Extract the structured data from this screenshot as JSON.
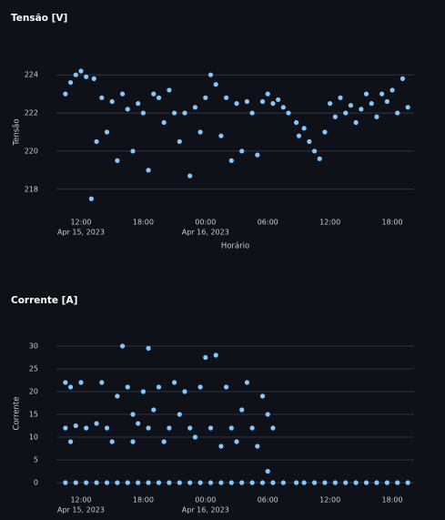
{
  "chart_data": [
    {
      "type": "scatter",
      "title": "Tensão [V]",
      "x_label": "Horário",
      "y_label": "Tensão",
      "color": "#83c9ff",
      "grid": true,
      "x": [
        "2023-04-15 10:30",
        "2023-04-15 11:00",
        "2023-04-15 11:30",
        "2023-04-15 12:00",
        "2023-04-15 12:30",
        "2023-04-15 13:00",
        "2023-04-15 13:15",
        "2023-04-15 13:30",
        "2023-04-15 14:00",
        "2023-04-15 14:30",
        "2023-04-15 15:00",
        "2023-04-15 15:30",
        "2023-04-15 16:00",
        "2023-04-15 16:30",
        "2023-04-15 17:00",
        "2023-04-15 17:30",
        "2023-04-15 18:00",
        "2023-04-15 18:30",
        "2023-04-15 19:00",
        "2023-04-15 19:30",
        "2023-04-15 20:00",
        "2023-04-15 20:30",
        "2023-04-15 21:00",
        "2023-04-15 21:30",
        "2023-04-15 22:00",
        "2023-04-15 22:30",
        "2023-04-15 23:00",
        "2023-04-15 23:30",
        "2023-04-16 00:00",
        "2023-04-16 00:30",
        "2023-04-16 01:00",
        "2023-04-16 01:30",
        "2023-04-16 02:00",
        "2023-04-16 02:30",
        "2023-04-16 03:00",
        "2023-04-16 03:30",
        "2023-04-16 04:00",
        "2023-04-16 04:30",
        "2023-04-16 05:00",
        "2023-04-16 05:30",
        "2023-04-16 06:00",
        "2023-04-16 06:30",
        "2023-04-16 07:00",
        "2023-04-16 07:30",
        "2023-04-16 08:00",
        "2023-04-16 08:45",
        "2023-04-16 09:00",
        "2023-04-16 09:30",
        "2023-04-16 10:00",
        "2023-04-16 10:30",
        "2023-04-16 11:00",
        "2023-04-16 11:30",
        "2023-04-16 12:00",
        "2023-04-16 12:30",
        "2023-04-16 13:00",
        "2023-04-16 13:30",
        "2023-04-16 14:00",
        "2023-04-16 14:30",
        "2023-04-16 15:00",
        "2023-04-16 15:30",
        "2023-04-16 16:00",
        "2023-04-16 16:30",
        "2023-04-16 17:00",
        "2023-04-16 17:30",
        "2023-04-16 18:00",
        "2023-04-16 18:30",
        "2023-04-16 19:00",
        "2023-04-16 19:30"
      ],
      "values": [
        223.0,
        223.6,
        224.0,
        224.2,
        223.9,
        217.5,
        223.8,
        220.5,
        222.8,
        221.0,
        222.6,
        219.5,
        223.0,
        222.2,
        220.0,
        222.5,
        222.0,
        219.0,
        223.0,
        222.8,
        221.5,
        223.2,
        222.0,
        220.5,
        222.0,
        218.7,
        222.3,
        221.0,
        222.8,
        224.0,
        223.5,
        220.8,
        222.8,
        219.5,
        222.5,
        220.0,
        222.6,
        222.0,
        219.8,
        222.6,
        223.0,
        222.5,
        222.7,
        222.3,
        222.0,
        221.5,
        220.8,
        221.2,
        220.5,
        220.0,
        219.6,
        221.0,
        222.5,
        221.8,
        222.8,
        222.0,
        222.4,
        221.5,
        222.2,
        223.0,
        222.5,
        221.8,
        223.0,
        222.6,
        223.2,
        222.0,
        223.8,
        222.3
      ],
      "xlim": [
        "2023-04-15 09:38",
        "2023-04-16 20:06"
      ],
      "xticks": [
        {
          "value": "2023-04-15 12:00",
          "label": [
            "12:00",
            "Apr 15, 2023"
          ]
        },
        {
          "value": "2023-04-15 18:00",
          "label": [
            "18:00"
          ]
        },
        {
          "value": "2023-04-16 00:00",
          "label": [
            "00:00",
            "Apr 16, 2023"
          ]
        },
        {
          "value": "2023-04-16 06:00",
          "label": [
            "06:00"
          ]
        },
        {
          "value": "2023-04-16 12:00",
          "label": [
            "12:00"
          ]
        },
        {
          "value": "2023-04-16 18:00",
          "label": [
            "18:00"
          ]
        }
      ],
      "ylim": [
        216.7,
        225.3
      ],
      "yticks": [
        218,
        220,
        222,
        224
      ]
    },
    {
      "type": "scatter",
      "title": "Corrente [A]",
      "y_label": "Corrente",
      "color": "#83c9ff",
      "grid": true,
      "x": [
        "2023-04-15 10:30",
        "2023-04-15 11:30",
        "2023-04-15 12:30",
        "2023-04-15 13:30",
        "2023-04-15 14:30",
        "2023-04-15 15:30",
        "2023-04-15 16:30",
        "2023-04-15 17:30",
        "2023-04-15 18:30",
        "2023-04-15 19:30",
        "2023-04-15 20:30",
        "2023-04-15 21:30",
        "2023-04-15 22:30",
        "2023-04-15 23:30",
        "2023-04-16 00:30",
        "2023-04-16 01:30",
        "2023-04-16 02:30",
        "2023-04-16 03:30",
        "2023-04-16 04:30",
        "2023-04-16 05:30",
        "2023-04-16 06:30",
        "2023-04-16 07:30",
        "2023-04-16 08:45",
        "2023-04-16 09:30",
        "2023-04-16 10:30",
        "2023-04-16 11:30",
        "2023-04-16 12:30",
        "2023-04-16 13:30",
        "2023-04-16 14:30",
        "2023-04-16 15:30",
        "2023-04-16 16:30",
        "2023-04-16 17:30",
        "2023-04-16 18:30",
        "2023-04-16 19:30",
        "2023-04-15 10:30",
        "2023-04-15 10:30",
        "2023-04-15 11:00",
        "2023-04-15 11:00",
        "2023-04-15 11:30",
        "2023-04-15 12:00",
        "2023-04-15 12:30",
        "2023-04-15 13:30",
        "2023-04-15 14:00",
        "2023-04-15 14:30",
        "2023-04-15 15:00",
        "2023-04-15 15:30",
        "2023-04-15 16:00",
        "2023-04-15 16:30",
        "2023-04-15 17:00",
        "2023-04-15 17:00",
        "2023-04-15 17:30",
        "2023-04-15 18:00",
        "2023-04-15 18:30",
        "2023-04-15 18:30",
        "2023-04-15 19:00",
        "2023-04-15 19:30",
        "2023-04-15 20:00",
        "2023-04-15 20:30",
        "2023-04-15 21:00",
        "2023-04-15 21:30",
        "2023-04-15 22:00",
        "2023-04-15 22:30",
        "2023-04-15 23:00",
        "2023-04-15 23:30",
        "2023-04-16 00:00",
        "2023-04-16 00:30",
        "2023-04-16 01:00",
        "2023-04-16 01:30",
        "2023-04-16 02:00",
        "2023-04-16 02:30",
        "2023-04-16 03:00",
        "2023-04-16 03:30",
        "2023-04-16 04:00",
        "2023-04-16 04:30",
        "2023-04-16 05:00",
        "2023-04-16 05:30",
        "2023-04-16 06:00",
        "2023-04-16 06:00",
        "2023-04-16 06:30"
      ],
      "values": [
        0,
        0,
        0,
        0,
        0,
        0,
        0,
        0,
        0,
        0,
        0,
        0,
        0,
        0,
        0,
        0,
        0,
        0,
        0,
        0,
        0,
        0,
        0,
        0,
        0,
        0,
        0,
        0,
        0,
        0,
        0,
        0,
        0,
        0,
        22,
        12,
        21,
        9,
        12.5,
        22,
        12,
        13,
        22,
        12,
        9,
        19,
        30,
        21,
        15,
        9,
        13,
        20,
        29.5,
        12,
        16,
        21,
        9,
        12,
        22,
        15,
        20,
        12,
        10,
        21,
        27.5,
        12,
        28,
        8,
        21,
        12,
        9,
        16,
        22,
        12,
        8,
        19,
        15,
        2.5,
        12
      ],
      "xlim": [
        "2023-04-15 09:38",
        "2023-04-16 20:06"
      ],
      "xticks": [
        {
          "value": "2023-04-15 12:00",
          "label": [
            "12:00",
            "Apr 15, 2023"
          ]
        },
        {
          "value": "2023-04-15 18:00",
          "label": [
            "18:00"
          ]
        },
        {
          "value": "2023-04-16 00:00",
          "label": [
            "00:00",
            "Apr 16, 2023"
          ]
        },
        {
          "value": "2023-04-16 06:00",
          "label": [
            "06:00"
          ]
        },
        {
          "value": "2023-04-16 12:00",
          "label": [
            "12:00"
          ]
        },
        {
          "value": "2023-04-16 18:00",
          "label": [
            "18:00"
          ]
        }
      ],
      "ylim": [
        -2,
        32.4
      ],
      "yticks": [
        0,
        5,
        10,
        15,
        20,
        25,
        30
      ]
    }
  ]
}
